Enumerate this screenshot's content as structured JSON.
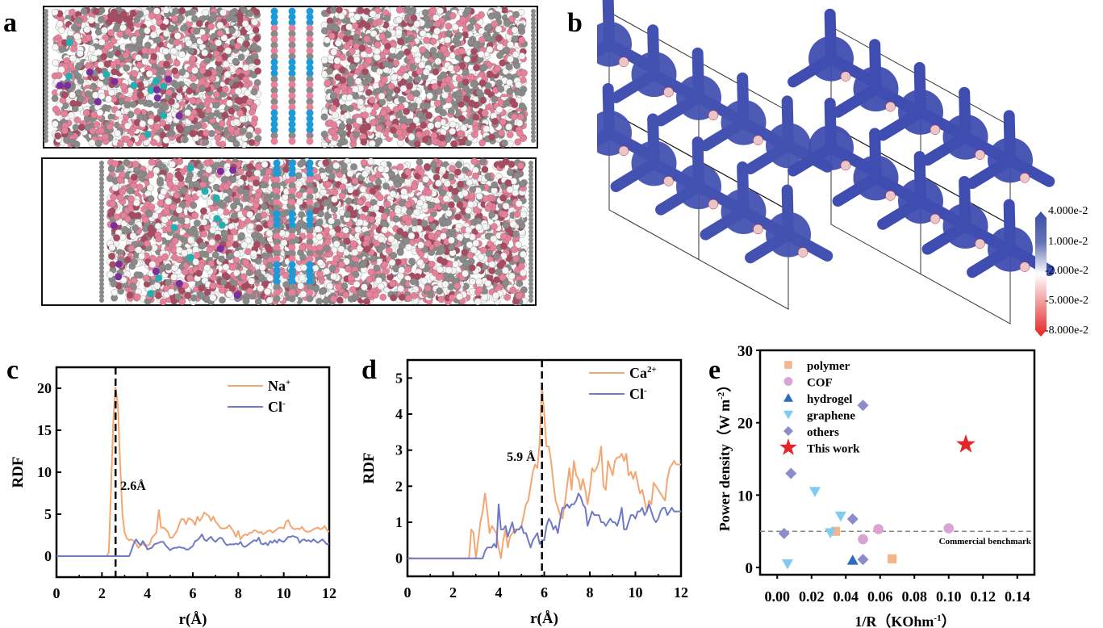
{
  "panels": {
    "a": {
      "letter": "a",
      "description": "Molecular dynamics simulation boxes"
    },
    "b": {
      "letter": "b",
      "description": "Electrostatic potential maps of frameworks"
    },
    "c": {
      "letter": "c"
    },
    "d": {
      "letter": "d"
    },
    "e": {
      "letter": "e"
    }
  },
  "colorbar": {
    "labels": [
      "4.000e-2",
      "1.000e-2",
      "-2.000e-2",
      "-5.000e-2",
      "-8.000e-2"
    ],
    "colors": {
      "top": "#3a4fa8",
      "middle": "#ffffff",
      "bottom": "#e52420"
    }
  },
  "molecule_colors": {
    "carbon": "#8a8a8a",
    "oxygen": "#e8809a",
    "hydrogen": "#f5f5f5",
    "dark_oxygen": "#a94a60",
    "cation": "#1e9ad6",
    "teal_ion": "#20b0b0",
    "purple_ion": "#7a2ea0"
  },
  "chart_data": [
    {
      "id": "c",
      "type": "line",
      "title": "",
      "xlabel": "r(Å)",
      "ylabel": "RDF",
      "xlim": [
        0,
        12
      ],
      "ylim": [
        -2.5,
        22.5
      ],
      "xticks": [
        "0",
        "2",
        "4",
        "6",
        "8",
        "10",
        "12"
      ],
      "yticks": [
        "0",
        "5",
        "10",
        "15",
        "20"
      ],
      "legend_position": "top-right",
      "annotation": {
        "text": "2.6Å",
        "x": 2.6
      },
      "series": [
        {
          "name": "Na+",
          "label_main": "Na",
          "label_sup": "+",
          "color": "#f4a672",
          "x": [
            0,
            2.2,
            2.3,
            2.4,
            2.5,
            2.6,
            2.7,
            2.8,
            2.9,
            3.0,
            3.1,
            3.2,
            3.3,
            3.4,
            3.5,
            3.6,
            3.7,
            3.8,
            3.9,
            4.0,
            4.1,
            4.2,
            4.3,
            4.4,
            4.5,
            4.6,
            4.7,
            4.8,
            4.9,
            5.0,
            5.1,
            5.2,
            5.3,
            5.4,
            5.5,
            5.6,
            5.7,
            5.8,
            5.9,
            6.0,
            6.1,
            6.2,
            6.3,
            6.4,
            6.5,
            6.6,
            6.7,
            6.8,
            6.9,
            7.0,
            7.1,
            7.2,
            7.3,
            7.4,
            7.5,
            7.6,
            7.7,
            7.8,
            7.9,
            8.0,
            8.1,
            8.2,
            8.3,
            8.4,
            8.5,
            8.6,
            8.7,
            8.8,
            8.9,
            9.0,
            9.1,
            9.2,
            9.3,
            9.4,
            9.5,
            9.6,
            9.7,
            9.8,
            9.9,
            10.0,
            10.1,
            10.2,
            10.3,
            10.4,
            10.5,
            10.6,
            10.7,
            10.8,
            10.9,
            11.0,
            11.1,
            11.2,
            11.3,
            11.4,
            11.5,
            11.6,
            11.7,
            11.8,
            11.9,
            12.0
          ],
          "y": [
            0,
            0,
            0.4,
            8,
            16,
            20.1,
            18,
            11,
            5,
            2.8,
            2.1,
            1.9,
            2.0,
            1.8,
            1.5,
            1.0,
            1.3,
            1.5,
            1.2,
            1.3,
            1.4,
            2.2,
            2.5,
            2.8,
            5.5,
            3.4,
            3.4,
            3.2,
            2.9,
            2.2,
            2.2,
            2.6,
            3.0,
            3.8,
            4.4,
            4.4,
            3.8,
            4.5,
            4.4,
            4.2,
            3.7,
            4.7,
            4.2,
            4.6,
            5.2,
            5.0,
            4.8,
            4.2,
            4.7,
            4.1,
            3.8,
            3.4,
            3.3,
            3.3,
            3.4,
            3.7,
            3.3,
            2.9,
            2.3,
            3.0,
            2.0,
            2.4,
            2.6,
            2.5,
            2.8,
            2.8,
            3.1,
            3.0,
            2.8,
            2.9,
            2.6,
            2.8,
            3.0,
            3.1,
            2.8,
            3.0,
            3.2,
            3.4,
            3.4,
            3.3,
            4.1,
            4.3,
            3.6,
            3.3,
            3.2,
            3.3,
            3.2,
            3.5,
            3.1,
            2.9,
            2.9,
            3.0,
            3.2,
            3.3,
            3.4,
            3.2,
            3.3,
            3.6,
            3.1,
            2.9
          ],
          "note": "values approximate"
        },
        {
          "name": "Cl-",
          "label_main": "Cl",
          "label_sup": "-",
          "color": "#7078c8",
          "x": [
            0,
            3.1,
            3.2,
            3.3,
            3.4,
            3.5,
            3.6,
            3.7,
            3.8,
            3.9,
            4.0,
            4.1,
            4.2,
            4.3,
            4.4,
            4.5,
            4.6,
            4.7,
            4.8,
            4.9,
            5.0,
            5.1,
            5.2,
            5.3,
            5.4,
            5.5,
            5.6,
            5.7,
            5.8,
            5.9,
            6.0,
            6.1,
            6.2,
            6.3,
            6.4,
            6.5,
            6.6,
            6.7,
            6.8,
            6.9,
            7.0,
            7.1,
            7.2,
            7.3,
            7.4,
            7.5,
            7.6,
            7.7,
            7.8,
            7.9,
            8.0,
            8.1,
            8.2,
            8.3,
            8.4,
            8.5,
            8.6,
            8.7,
            8.8,
            8.9,
            9.0,
            9.1,
            9.2,
            9.3,
            9.4,
            9.5,
            9.6,
            9.7,
            9.8,
            9.9,
            10.0,
            10.1,
            10.2,
            10.3,
            10.4,
            10.5,
            10.6,
            10.7,
            10.8,
            10.9,
            11.0,
            11.1,
            11.2,
            11.3,
            11.4,
            11.5,
            11.6,
            11.7,
            11.8,
            11.9,
            12.0
          ],
          "y": [
            0,
            0,
            0,
            0.7,
            1.5,
            2.0,
            1.6,
            1.3,
            1.8,
            1.4,
            0.8,
            0.9,
            1.0,
            1.4,
            1.5,
            1.6,
            1.7,
            1.7,
            1.3,
            1.0,
            0.7,
            0.9,
            1.0,
            1.0,
            1.1,
            1.0,
            1.0,
            0.8,
            0.8,
            1.0,
            1.2,
            1.8,
            1.9,
            2.2,
            2.6,
            2.0,
            1.8,
            2.1,
            2.3,
            1.9,
            1.7,
            2.0,
            2.2,
            2.1,
            1.6,
            1.3,
            1.4,
            1.4,
            1.4,
            1.5,
            1.4,
            1.7,
            1.2,
            1.1,
            1.3,
            1.5,
            1.7,
            1.9,
            1.8,
            2.2,
            1.5,
            1.4,
            1.6,
            1.3,
            1.8,
            1.6,
            1.9,
            1.6,
            2.0,
            1.8,
            1.7,
            2.0,
            2.3,
            2.3,
            2.4,
            2.3,
            2.2,
            1.6,
            1.9,
            2.0,
            1.8,
            1.9,
            1.7,
            2.0,
            1.8,
            1.6,
            1.8,
            2.0,
            1.7,
            1.4,
            1.5
          ],
          "note": "values approximate"
        }
      ]
    },
    {
      "id": "d",
      "type": "line",
      "title": "",
      "xlabel": "r(Å)",
      "ylabel": "RDF",
      "xlim": [
        0,
        12
      ],
      "ylim": [
        -0.5,
        5.5
      ],
      "xticks": [
        "0",
        "2",
        "4",
        "6",
        "8",
        "10",
        "12"
      ],
      "yticks": [
        "0",
        "1",
        "2",
        "3",
        "4",
        "5"
      ],
      "legend_position": "top-right",
      "annotation": {
        "text": "5.9 Å",
        "x": 5.9
      },
      "series": [
        {
          "name": "Ca2+",
          "label_main": "Ca",
          "label_sup": "2+",
          "color": "#f4a672",
          "x": [
            0,
            2.7,
            2.8,
            2.9,
            3.0,
            3.1,
            3.2,
            3.3,
            3.4,
            3.5,
            3.6,
            3.7,
            3.8,
            3.9,
            4.0,
            4.1,
            4.2,
            4.3,
            4.4,
            4.5,
            4.6,
            4.7,
            4.8,
            4.9,
            5.0,
            5.1,
            5.2,
            5.3,
            5.4,
            5.5,
            5.6,
            5.7,
            5.8,
            5.9,
            6.0,
            6.1,
            6.2,
            6.3,
            6.4,
            6.5,
            6.6,
            6.7,
            6.8,
            6.9,
            7.0,
            7.1,
            7.2,
            7.3,
            7.4,
            7.5,
            7.6,
            7.7,
            7.8,
            7.9,
            8.0,
            8.1,
            8.2,
            8.3,
            8.4,
            8.5,
            8.6,
            8.7,
            8.8,
            8.9,
            9.0,
            9.1,
            9.2,
            9.3,
            9.4,
            9.5,
            9.6,
            9.7,
            9.8,
            9.9,
            10.0,
            10.1,
            10.2,
            10.3,
            10.4,
            10.5,
            10.6,
            10.7,
            10.8,
            10.9,
            11.0,
            11.1,
            11.2,
            11.3,
            11.4,
            11.5,
            11.6,
            11.7,
            11.8,
            11.9,
            12.0
          ],
          "y": [
            0,
            0,
            0.8,
            0.7,
            0.0,
            0.5,
            1.0,
            1.3,
            1.8,
            1.3,
            0.7,
            0.9,
            0.8,
            0.7,
            0.3,
            0.0,
            0.5,
            0.8,
            0.3,
            0.6,
            0.7,
            0.8,
            0.8,
            0.8,
            0.9,
            1.2,
            1.5,
            1.6,
            2.0,
            2.4,
            2.6,
            2.5,
            3.2,
            4.8,
            4.0,
            3.1,
            3.1,
            2.7,
            2.1,
            1.6,
            1.4,
            1.2,
            1.1,
            1.5,
            2.0,
            2.5,
            1.9,
            2.7,
            2.3,
            2.2,
            1.9,
            2.2,
            1.9,
            1.5,
            1.9,
            2.5,
            2.4,
            2.5,
            2.7,
            3.1,
            2.0,
            1.9,
            2.7,
            2.5,
            2.3,
            2.7,
            2.8,
            2.8,
            2.9,
            2.7,
            2.9,
            2.3,
            2.4,
            2.2,
            2.4,
            2.1,
            1.8,
            1.9,
            1.6,
            1.3,
            1.6,
            1.5,
            2.1,
            2.0,
            1.9,
            1.8,
            1.7,
            1.6,
            2.2,
            2.5,
            2.6,
            2.7,
            2.6,
            2.6,
            2.6
          ],
          "note": "values approximate"
        },
        {
          "name": "Cl-",
          "label_main": "Cl",
          "label_sup": "-",
          "color": "#7078c8",
          "x": [
            0,
            3.3,
            3.4,
            3.5,
            3.6,
            3.7,
            3.8,
            3.9,
            4.0,
            4.1,
            4.2,
            4.3,
            4.4,
            4.5,
            4.6,
            4.7,
            4.8,
            4.9,
            5.0,
            5.1,
            5.2,
            5.3,
            5.4,
            5.5,
            5.6,
            5.7,
            5.8,
            5.9,
            6.0,
            6.1,
            6.2,
            6.3,
            6.4,
            6.5,
            6.6,
            6.7,
            6.8,
            6.9,
            7.0,
            7.1,
            7.2,
            7.3,
            7.4,
            7.5,
            7.6,
            7.7,
            7.8,
            7.9,
            8.0,
            8.1,
            8.2,
            8.3,
            8.4,
            8.5,
            8.6,
            8.7,
            8.8,
            8.9,
            9.0,
            9.1,
            9.2,
            9.3,
            9.4,
            9.5,
            9.6,
            9.7,
            9.8,
            9.9,
            10.0,
            10.1,
            10.2,
            10.3,
            10.4,
            10.5,
            10.6,
            10.7,
            10.8,
            10.9,
            11.0,
            11.1,
            11.2,
            11.3,
            11.4,
            11.5,
            11.6,
            11.7,
            11.8,
            11.9,
            12.0
          ],
          "y": [
            0,
            0,
            0.2,
            0.3,
            0.3,
            0.3,
            0.4,
            0.3,
            1.5,
            0.8,
            0.8,
            0.9,
            0.6,
            0.8,
            1.0,
            0.7,
            0.8,
            0.8,
            0.9,
            0.7,
            0.7,
            0.5,
            0.3,
            0.5,
            0.6,
            0.7,
            0.4,
            0.5,
            0.5,
            0.9,
            1.1,
            1.0,
            0.8,
            0.9,
            0.7,
            1.1,
            1.4,
            1.4,
            1.5,
            1.4,
            1.5,
            1.5,
            1.6,
            1.8,
            1.7,
            1.5,
            1.4,
            0.9,
            1.1,
            1.3,
            1.2,
            1.2,
            1.2,
            1.0,
            1.0,
            0.9,
            1.0,
            1.1,
            1.0,
            1.0,
            0.9,
            1.1,
            1.4,
            0.8,
            0.8,
            1.0,
            1.2,
            1.2,
            1.1,
            1.3,
            1.3,
            1.4,
            1.2,
            1.3,
            1.5,
            1.3,
            1.1,
            1.0,
            1.1,
            1.3,
            1.4,
            1.4,
            1.2,
            1.3,
            1.4,
            1.3,
            1.3,
            1.3,
            1.3
          ],
          "note": "values approximate"
        }
      ]
    },
    {
      "id": "e",
      "type": "scatter",
      "title": "",
      "xlabel": "1/R（KOhm⁻¹）",
      "xlabel_main": "1/R（KOhm",
      "xlabel_sup": "-1",
      "xlabel_tail": "）",
      "ylabel": "Power density（W m⁻²）",
      "ylabel_main": "Power density（W m",
      "ylabel_sup": "-2",
      "ylabel_tail": "）",
      "xlim": [
        -0.01,
        0.15
      ],
      "ylim": [
        -1,
        30
      ],
      "xticks": [
        "0.00",
        "0.02",
        "0.04",
        "0.06",
        "0.08",
        "0.10",
        "0.12",
        "0.14"
      ],
      "yticks": [
        "0",
        "10",
        "20",
        "30"
      ],
      "legend_position": "top-left",
      "reference_line": {
        "y": 5,
        "label": "Commercial benchmark",
        "style": "dashed",
        "color": "#888888"
      },
      "series": [
        {
          "name": "polymer",
          "marker": "square",
          "color": "#f5b489",
          "points": [
            [
              0.034,
              5.0
            ],
            [
              0.067,
              1.2
            ]
          ]
        },
        {
          "name": "COF",
          "marker": "circle",
          "color": "#d9a3d6",
          "points": [
            [
              0.05,
              3.9
            ],
            [
              0.059,
              5.3
            ],
            [
              0.1,
              5.4
            ]
          ]
        },
        {
          "name": "hydrogel",
          "marker": "triangle-up",
          "color": "#2e6bbf",
          "points": [
            [
              0.044,
              1.0
            ]
          ]
        },
        {
          "name": "graphene",
          "marker": "triangle-down",
          "color": "#7dcdf2",
          "points": [
            [
              0.006,
              0.5
            ],
            [
              0.022,
              10.5
            ],
            [
              0.031,
              4.8
            ],
            [
              0.037,
              7.1
            ]
          ]
        },
        {
          "name": "others",
          "marker": "diamond",
          "color": "#8a8ccc",
          "points": [
            [
              0.004,
              4.7
            ],
            [
              0.008,
              13.0
            ],
            [
              0.044,
              6.7
            ],
            [
              0.05,
              22.4
            ],
            [
              0.05,
              1.1
            ]
          ]
        },
        {
          "name": "This work",
          "marker": "star",
          "color": "#e8242a",
          "points": [
            [
              0.11,
              17.0
            ]
          ]
        }
      ]
    }
  ]
}
